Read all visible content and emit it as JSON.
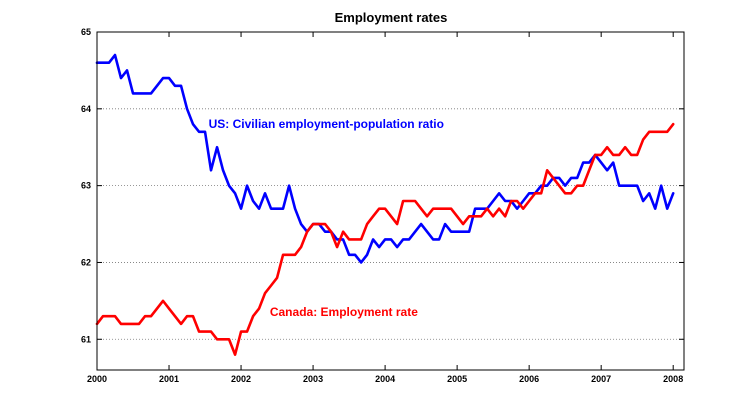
{
  "chart_data": {
    "type": "line",
    "title": "Employment rates",
    "xlabel": "",
    "ylabel": "",
    "xlim": [
      2000,
      2008.15
    ],
    "ylim": [
      60.6,
      65
    ],
    "x_ticks": [
      2000,
      2001,
      2002,
      2003,
      2004,
      2005,
      2006,
      2007,
      2008
    ],
    "x_tick_labels": [
      "2000",
      "2001",
      "2002",
      "2003",
      "2004",
      "2005",
      "2006",
      "2007",
      "2008"
    ],
    "y_ticks": [
      61,
      62,
      63,
      64,
      65
    ],
    "y_tick_labels": [
      "61",
      "62",
      "63",
      "64",
      "65"
    ],
    "grid": "horizontal dotted",
    "series": [
      {
        "name": "US: Civilian employment-population ratio",
        "color": "#0000ff",
        "x": [
          2000.0,
          2000.083,
          2000.167,
          2000.25,
          2000.333,
          2000.417,
          2000.5,
          2000.583,
          2000.667,
          2000.75,
          2000.833,
          2000.917,
          2001.0,
          2001.083,
          2001.167,
          2001.25,
          2001.333,
          2001.417,
          2001.5,
          2001.583,
          2001.667,
          2001.75,
          2001.833,
          2001.917,
          2002.0,
          2002.083,
          2002.167,
          2002.25,
          2002.333,
          2002.417,
          2002.5,
          2002.583,
          2002.667,
          2002.75,
          2002.833,
          2002.917,
          2003.0,
          2003.083,
          2003.167,
          2003.25,
          2003.333,
          2003.417,
          2003.5,
          2003.583,
          2003.667,
          2003.75,
          2003.833,
          2003.917,
          2004.0,
          2004.083,
          2004.167,
          2004.25,
          2004.333,
          2004.417,
          2004.5,
          2004.583,
          2004.667,
          2004.75,
          2004.833,
          2004.917,
          2005.0,
          2005.083,
          2005.167,
          2005.25,
          2005.333,
          2005.417,
          2005.5,
          2005.583,
          2005.667,
          2005.75,
          2005.833,
          2005.917,
          2006.0,
          2006.083,
          2006.167,
          2006.25,
          2006.333,
          2006.417,
          2006.5,
          2006.583,
          2006.667,
          2006.75,
          2006.833,
          2006.917,
          2007.0,
          2007.083,
          2007.167,
          2007.25,
          2007.333,
          2007.417,
          2007.5,
          2007.583,
          2007.667,
          2007.75,
          2007.833,
          2007.917,
          2008.0
        ],
        "values": [
          64.6,
          64.6,
          64.6,
          64.7,
          64.4,
          64.5,
          64.2,
          64.2,
          64.2,
          64.2,
          64.3,
          64.4,
          64.4,
          64.3,
          64.3,
          64.0,
          63.8,
          63.7,
          63.7,
          63.2,
          63.5,
          63.2,
          63.0,
          62.9,
          62.7,
          63.0,
          62.8,
          62.7,
          62.9,
          62.7,
          62.7,
          62.7,
          63.0,
          62.7,
          62.5,
          62.4,
          62.5,
          62.5,
          62.4,
          62.4,
          62.3,
          62.3,
          62.1,
          62.1,
          62.0,
          62.1,
          62.3,
          62.2,
          62.3,
          62.3,
          62.2,
          62.3,
          62.3,
          62.4,
          62.5,
          62.4,
          62.3,
          62.3,
          62.5,
          62.4,
          62.4,
          62.4,
          62.4,
          62.7,
          62.7,
          62.7,
          62.8,
          62.9,
          62.8,
          62.8,
          62.7,
          62.8,
          62.9,
          62.9,
          63.0,
          63.0,
          63.1,
          63.1,
          63.0,
          63.1,
          63.1,
          63.3,
          63.3,
          63.4,
          63.3,
          63.2,
          63.3,
          63.0,
          63.0,
          63.0,
          63.0,
          62.8,
          62.9,
          62.7,
          63.0,
          62.7,
          62.9
        ]
      },
      {
        "name": "Canada: Employment rate",
        "color": "#ff0000",
        "x": [
          2000.0,
          2000.083,
          2000.167,
          2000.25,
          2000.333,
          2000.417,
          2000.5,
          2000.583,
          2000.667,
          2000.75,
          2000.833,
          2000.917,
          2001.0,
          2001.083,
          2001.167,
          2001.25,
          2001.333,
          2001.417,
          2001.5,
          2001.583,
          2001.667,
          2001.75,
          2001.833,
          2001.917,
          2002.0,
          2002.083,
          2002.167,
          2002.25,
          2002.333,
          2002.417,
          2002.5,
          2002.583,
          2002.667,
          2002.75,
          2002.833,
          2002.917,
          2003.0,
          2003.083,
          2003.167,
          2003.25,
          2003.333,
          2003.417,
          2003.5,
          2003.583,
          2003.667,
          2003.75,
          2003.833,
          2003.917,
          2004.0,
          2004.083,
          2004.167,
          2004.25,
          2004.333,
          2004.417,
          2004.5,
          2004.583,
          2004.667,
          2004.75,
          2004.833,
          2004.917,
          2005.0,
          2005.083,
          2005.167,
          2005.25,
          2005.333,
          2005.417,
          2005.5,
          2005.583,
          2005.667,
          2005.75,
          2005.833,
          2005.917,
          2006.0,
          2006.083,
          2006.167,
          2006.25,
          2006.333,
          2006.417,
          2006.5,
          2006.583,
          2006.667,
          2006.75,
          2006.833,
          2006.917,
          2007.0,
          2007.083,
          2007.167,
          2007.25,
          2007.333,
          2007.417,
          2007.5,
          2007.583,
          2007.667,
          2007.75,
          2007.833,
          2007.917,
          2008.0
        ],
        "values": [
          61.2,
          61.3,
          61.3,
          61.3,
          61.2,
          61.2,
          61.2,
          61.2,
          61.3,
          61.3,
          61.4,
          61.5,
          61.4,
          61.3,
          61.2,
          61.3,
          61.3,
          61.1,
          61.1,
          61.1,
          61.0,
          61.0,
          61.0,
          60.8,
          61.1,
          61.1,
          61.3,
          61.4,
          61.6,
          61.7,
          61.8,
          62.1,
          62.1,
          62.1,
          62.2,
          62.4,
          62.5,
          62.5,
          62.5,
          62.4,
          62.2,
          62.4,
          62.3,
          62.3,
          62.3,
          62.5,
          62.6,
          62.7,
          62.7,
          62.6,
          62.5,
          62.8,
          62.8,
          62.8,
          62.7,
          62.6,
          62.7,
          62.7,
          62.7,
          62.7,
          62.6,
          62.5,
          62.6,
          62.6,
          62.6,
          62.7,
          62.6,
          62.7,
          62.6,
          62.8,
          62.8,
          62.7,
          62.8,
          62.9,
          62.9,
          63.2,
          63.1,
          63.0,
          62.9,
          62.9,
          63.0,
          63.0,
          63.2,
          63.4,
          63.4,
          63.5,
          63.4,
          63.4,
          63.5,
          63.4,
          63.4,
          63.6,
          63.7,
          63.7,
          63.7,
          63.7,
          63.8
        ]
      }
    ],
    "annotations": [
      {
        "text": "US: Civilian employment-population ratio",
        "series": 0,
        "x": 2001.55,
        "y": 63.75
      },
      {
        "text": "Canada: Employment rate",
        "series": 1,
        "x": 2002.4,
        "y": 61.3
      }
    ]
  }
}
